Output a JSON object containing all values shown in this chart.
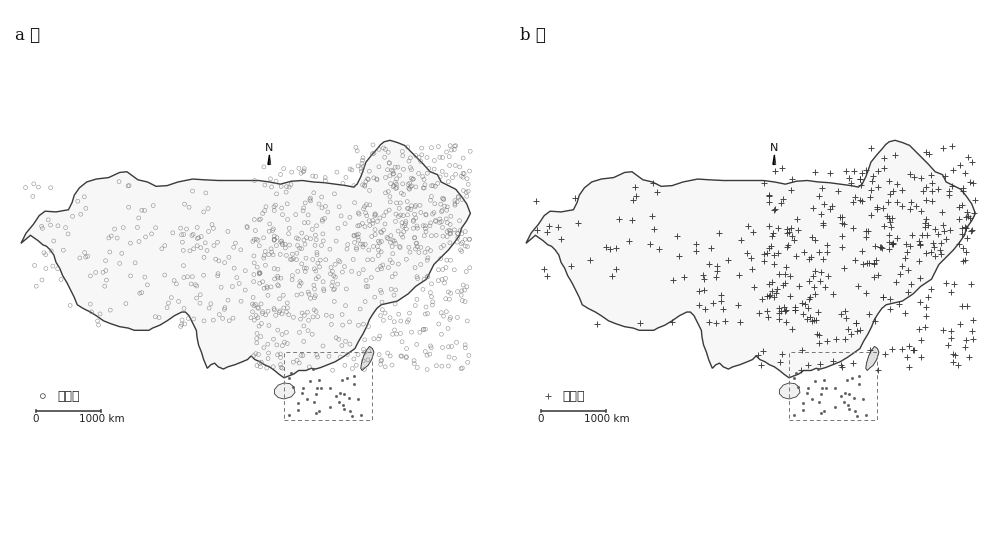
{
  "panel_a_label": "a ）",
  "panel_b_label": "b ）",
  "legend_a_text": "建模点",
  "legend_b_text": "验证点",
  "scale_label": "1000 km",
  "scale_start": "0",
  "north_label": "N",
  "background_color": "#ffffff",
  "n_points_a": 950,
  "n_points_b": 420,
  "seed_a": 42,
  "seed_b": 77,
  "map_xlim": [
    72,
    137
  ],
  "map_ylim": [
    15,
    55
  ]
}
